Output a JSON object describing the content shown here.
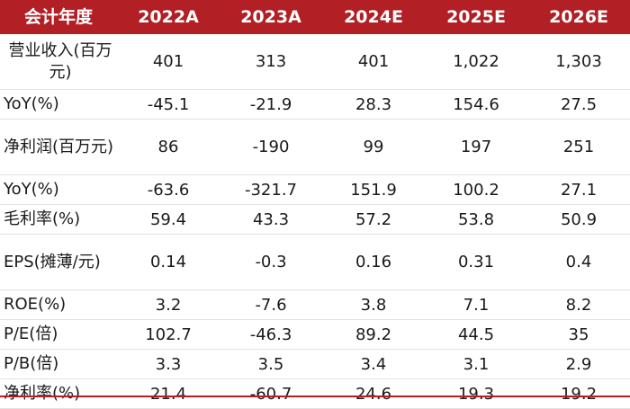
{
  "header": [
    "会计年度",
    "2022A",
    "2023A",
    "2024E",
    "2025E",
    "2026E"
  ],
  "rows": [
    {
      "label": "营业收入(百万元)",
      "values": [
        "401",
        "313",
        "401",
        "1,022",
        "1,303"
      ],
      "tall": true
    },
    {
      "label": "YoY(%)",
      "values": [
        "-45.1",
        "-21.9",
        "28.3",
        "154.6",
        "27.5"
      ],
      "tall": false
    },
    {
      "label": "净利润(百万元)",
      "values": [
        "86",
        "-190",
        "99",
        "197",
        "251"
      ],
      "tall": true
    },
    {
      "label": "YoY(%)",
      "values": [
        "-63.6",
        "-321.7",
        "151.9",
        "100.2",
        "27.1"
      ],
      "tall": false
    },
    {
      "label": "毛利率(%)",
      "values": [
        "59.4",
        "43.3",
        "57.2",
        "53.8",
        "50.9"
      ],
      "tall": false
    },
    {
      "label": "EPS(摊薄/元)",
      "values": [
        "0.14",
        "-0.3",
        "0.16",
        "0.31",
        "0.4"
      ],
      "tall": true
    },
    {
      "label": "ROE(%)",
      "values": [
        "3.2",
        "-7.6",
        "3.8",
        "7.1",
        "8.2"
      ],
      "tall": false
    },
    {
      "label": "P/E(倍)",
      "values": [
        "102.7",
        "-46.3",
        "89.2",
        "44.5",
        "35"
      ],
      "tall": false
    },
    {
      "label": "P/B(倍)",
      "values": [
        "3.3",
        "3.5",
        "3.4",
        "3.1",
        "2.9"
      ],
      "tall": false
    },
    {
      "label": "净利率(%)",
      "values": [
        "21.4",
        "-60.7",
        "24.6",
        "19.3",
        "19.2"
      ],
      "tall": false
    }
  ]
}
